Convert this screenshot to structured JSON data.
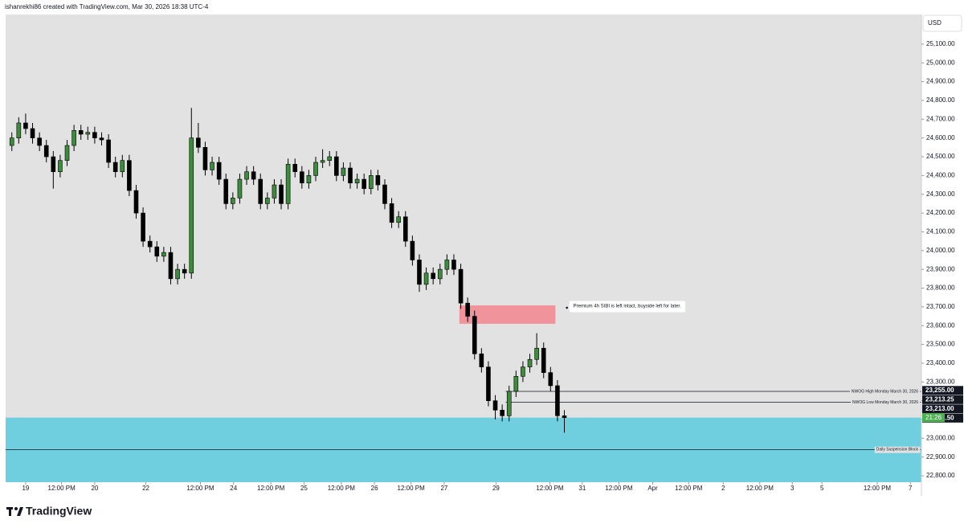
{
  "chart_data": {
    "type": "candlestick",
    "title": "ishanrekhi86 created with TradingView.com, Mar 30, 2026 18:38 UTC-4",
    "currency": "USD",
    "brand": "TradingView",
    "up_color": "#3d8b3d",
    "down_color": "#000000",
    "xlim": [
      -0.29,
      12.97
    ],
    "ylim": [
      22766,
      25258
    ],
    "xticks": [
      {
        "value": 0,
        "label": "19"
      },
      {
        "value": 0.52,
        "label": "12:00 PM"
      },
      {
        "value": 1.0,
        "label": "20"
      },
      {
        "value": 1.74,
        "label": "22"
      },
      {
        "value": 2.53,
        "label": "12:00 PM"
      },
      {
        "value": 3.01,
        "label": "24"
      },
      {
        "value": 3.55,
        "label": "12:00 PM"
      },
      {
        "value": 4.03,
        "label": "25"
      },
      {
        "value": 4.57,
        "label": "12:00 PM"
      },
      {
        "value": 5.05,
        "label": "26"
      },
      {
        "value": 5.58,
        "label": "12:00 PM"
      },
      {
        "value": 6.06,
        "label": "27"
      },
      {
        "value": 6.81,
        "label": "29"
      },
      {
        "value": 7.59,
        "label": "12:00 PM"
      },
      {
        "value": 8.06,
        "label": "31"
      },
      {
        "value": 8.59,
        "label": "12:00 PM"
      },
      {
        "value": 9.08,
        "label": "Apr"
      },
      {
        "value": 9.6,
        "label": "12:00 PM"
      },
      {
        "value": 10.1,
        "label": "2"
      },
      {
        "value": 10.63,
        "label": "12:00 PM"
      },
      {
        "value": 11.1,
        "label": "3"
      },
      {
        "value": 11.53,
        "label": "5"
      },
      {
        "value": 12.33,
        "label": "12:00 PM"
      },
      {
        "value": 12.81,
        "label": "7"
      }
    ],
    "yticks": [
      {
        "value": 22800,
        "label": "22,800.00"
      },
      {
        "value": 22900,
        "label": "22,900.00"
      },
      {
        "value": 23000,
        "label": "23,000.00"
      },
      {
        "value": 23100,
        "label": "23,100.00"
      },
      {
        "value": 23200,
        "label": "23,200.00"
      },
      {
        "value": 23300,
        "label": "23,300.00"
      },
      {
        "value": 23400,
        "label": "23,400.00"
      },
      {
        "value": 23500,
        "label": "23,500.00"
      },
      {
        "value": 23600,
        "label": "23,600.00"
      },
      {
        "value": 23700,
        "label": "23,700.00"
      },
      {
        "value": 23800,
        "label": "23,800.00"
      },
      {
        "value": 23900,
        "label": "23,900.00"
      },
      {
        "value": 24000,
        "label": "24,000.00"
      },
      {
        "value": 24100,
        "label": "24,100.00"
      },
      {
        "value": 24200,
        "label": "24,200.00"
      },
      {
        "value": 24300,
        "label": "24,300.00"
      },
      {
        "value": 24400,
        "label": "24,400.00"
      },
      {
        "value": 24500,
        "label": "24,500.00"
      },
      {
        "value": 24600,
        "label": "24,600.00"
      },
      {
        "value": 24700,
        "label": "24,700.00"
      },
      {
        "value": 24800,
        "label": "24,800.00"
      },
      {
        "value": 24900,
        "label": "24,900.00"
      },
      {
        "value": 25000,
        "label": "25,000.00"
      },
      {
        "value": 25100,
        "label": "25,100.00"
      }
    ],
    "x": [
      -0.2,
      -0.1,
      0,
      0.1,
      0.2,
      0.3,
      0.4,
      0.5,
      0.6,
      0.7,
      0.8,
      0.9,
      1.0,
      1.1,
      1.2,
      1.3,
      1.4,
      1.5,
      1.6,
      1.7,
      1.8,
      1.9,
      2.0,
      2.1,
      2.2,
      2.3,
      2.4,
      2.5,
      2.6,
      2.7,
      2.8,
      2.9,
      3.0,
      3.1,
      3.2,
      3.3,
      3.4,
      3.5,
      3.6,
      3.7,
      3.8,
      3.9,
      4.0,
      4.1,
      4.2,
      4.3,
      4.4,
      4.5,
      4.6,
      4.7,
      4.8,
      4.9,
      5.0,
      5.1,
      5.2,
      5.3,
      5.4,
      5.5,
      5.6,
      5.7,
      5.8,
      5.9,
      6.0,
      6.1,
      6.2,
      6.3,
      6.4,
      6.5,
      6.6,
      6.7,
      6.8,
      6.9,
      7.0,
      7.1,
      7.2,
      7.3,
      7.4,
      7.5,
      7.6,
      7.7,
      7.8
    ],
    "open": [
      24560,
      24600,
      24680,
      24650,
      24600,
      24560,
      24500,
      24420,
      24480,
      24560,
      24640,
      24620,
      24630,
      24600,
      24590,
      24470,
      24420,
      24480,
      24320,
      24200,
      24050,
      24020,
      23970,
      23990,
      23850,
      23900,
      23880,
      24600,
      24550,
      24430,
      24470,
      24380,
      24250,
      24280,
      24380,
      24420,
      24380,
      24250,
      24280,
      24350,
      24250,
      24460,
      24420,
      24360,
      24400,
      24470,
      24480,
      24500,
      24400,
      24440,
      24360,
      24380,
      24330,
      24400,
      24350,
      24250,
      24150,
      24180,
      24050,
      23950,
      23820,
      23880,
      23850,
      23900,
      23950,
      23900,
      23720,
      23650,
      23450,
      23380,
      23200,
      23150,
      23120,
      23250,
      23330,
      23380,
      23420,
      23480,
      23350,
      23280,
      23120
    ],
    "high": [
      24630,
      24710,
      24730,
      24680,
      24630,
      24590,
      24530,
      24510,
      24590,
      24670,
      24670,
      24660,
      24660,
      24630,
      24620,
      24500,
      24510,
      24510,
      24350,
      24230,
      24080,
      24050,
      24020,
      24020,
      23930,
      23930,
      24760,
      24680,
      24580,
      24500,
      24500,
      24410,
      24310,
      24410,
      24450,
      24450,
      24410,
      24310,
      24380,
      24380,
      24490,
      24490,
      24450,
      24430,
      24500,
      24540,
      24530,
      24530,
      24470,
      24470,
      24410,
      24410,
      24430,
      24430,
      24380,
      24280,
      24210,
      24210,
      24080,
      23980,
      23910,
      23910,
      23930,
      23980,
      23980,
      23930,
      23750,
      23680,
      23480,
      23410,
      23230,
      23180,
      23280,
      23360,
      23410,
      23450,
      23560,
      23510,
      23380,
      23310,
      23150
    ],
    "low": [
      24530,
      24570,
      24620,
      24570,
      24530,
      24470,
      24330,
      24390,
      24450,
      24530,
      24590,
      24590,
      24570,
      24560,
      24440,
      24390,
      24390,
      24290,
      24170,
      24020,
      23990,
      23940,
      23940,
      23820,
      23820,
      23850,
      23850,
      24520,
      24400,
      24400,
      24350,
      24220,
      24220,
      24250,
      24350,
      24350,
      24220,
      24220,
      24250,
      24220,
      24220,
      24390,
      24330,
      24330,
      24370,
      24440,
      24450,
      24370,
      24370,
      24330,
      24330,
      24300,
      24300,
      24320,
      24220,
      24120,
      24120,
      24020,
      23920,
      23780,
      23790,
      23820,
      23820,
      23870,
      23870,
      23690,
      23620,
      23420,
      23350,
      23170,
      23100,
      23090,
      23090,
      23220,
      23300,
      23350,
      23390,
      23320,
      23250,
      23090,
      23030
    ],
    "close": [
      24600,
      24680,
      24650,
      24600,
      24560,
      24500,
      24420,
      24480,
      24560,
      24640,
      24620,
      24630,
      24600,
      24590,
      24470,
      24420,
      24480,
      24320,
      24200,
      24050,
      24020,
      23970,
      23990,
      23850,
      23900,
      23880,
      24600,
      24550,
      24430,
      24470,
      24380,
      24250,
      24280,
      24380,
      24420,
      24380,
      24250,
      24280,
      24350,
      24250,
      24460,
      24420,
      24360,
      24400,
      24470,
      24480,
      24500,
      24400,
      24440,
      24360,
      24380,
      24330,
      24400,
      24350,
      24250,
      24150,
      24180,
      24050,
      23950,
      23820,
      23880,
      23850,
      23900,
      23950,
      23900,
      23720,
      23650,
      23450,
      23380,
      23200,
      23150,
      23120,
      23250,
      23330,
      23380,
      23420,
      23480,
      23350,
      23280,
      23120,
      23110
    ],
    "zones": [
      {
        "x0": 6.28,
        "x1": 7.67,
        "y0": 23610,
        "y1": 23708,
        "color": "#f0939b"
      },
      {
        "x0": -0.29,
        "x1": 12.97,
        "y0": 22766,
        "y1": 23110,
        "color": "#6fcfdf"
      }
    ],
    "lines": [
      {
        "name": "NWOG High Monday March 30, 2026",
        "x0": 6.95,
        "value": 23250
      },
      {
        "name": "NWOG Low Monday March 30, 2026",
        "x0": 6.95,
        "value": 23191.5
      },
      {
        "name": "Daily Suspension Block",
        "x0": -0.29,
        "value": 22940
      }
    ],
    "price_labels": [
      {
        "value": 23255,
        "label": "23,255.00"
      },
      {
        "value": 23213.25,
        "label": "23,213.25"
      },
      {
        "value": 23213,
        "label": "23,213.00"
      },
      {
        "value": 23191.5,
        "label": "23,191.50"
      }
    ],
    "last_price": 23110,
    "countdown": "21:26",
    "annotation": {
      "text": "Premium 4h SIBI is left intact, buyside left for later.",
      "x": 7.86,
      "y": 23704
    }
  }
}
